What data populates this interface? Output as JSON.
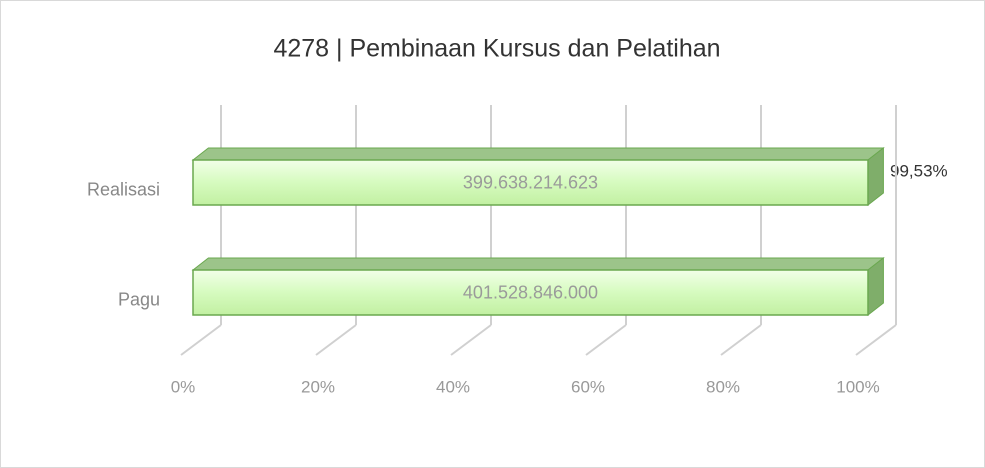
{
  "chart_data": {
    "type": "bar",
    "title": "4278 | Pembinaan Kursus dan Pelatihan",
    "stacking": "percent",
    "categories": [
      "Realisasi",
      "Pagu"
    ],
    "series": [
      {
        "color": "#c6f5a8",
        "values": [
          399638214623,
          401528846000
        ],
        "value_labels": [
          "399.638.214.623",
          "401.528.846.000"
        ]
      }
    ],
    "xlim": [
      0,
      100
    ],
    "xticks": [
      {
        "value": 0,
        "label": "0%"
      },
      {
        "value": 20,
        "label": "20%"
      },
      {
        "value": 40,
        "label": "40%"
      },
      {
        "value": 60,
        "label": "60%"
      },
      {
        "value": 80,
        "label": "80%"
      },
      {
        "value": 100,
        "label": "100%"
      }
    ],
    "grid": true,
    "annotation": "99,53%"
  }
}
